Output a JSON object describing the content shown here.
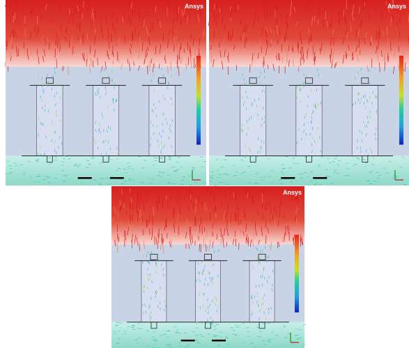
{
  "panels": [
    {
      "logo": "Ansys"
    },
    {
      "logo": "Ansys"
    },
    {
      "logo": "Ansys"
    }
  ]
}
